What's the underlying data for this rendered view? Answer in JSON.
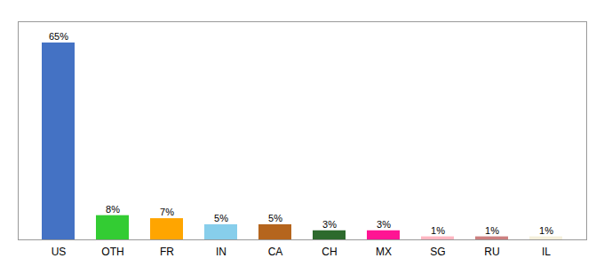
{
  "chart_data": {
    "type": "bar",
    "categories": [
      "US",
      "OTH",
      "FR",
      "IN",
      "CA",
      "CH",
      "MX",
      "SG",
      "RU",
      "IL"
    ],
    "values": [
      65,
      8,
      7,
      5,
      5,
      3,
      3,
      1,
      1,
      1
    ],
    "value_labels": [
      "65%",
      "8%",
      "7%",
      "5%",
      "5%",
      "3%",
      "3%",
      "1%",
      "1%",
      "1%"
    ],
    "colors": [
      "#4472c4",
      "#33cc33",
      "#ffa500",
      "#87ceeb",
      "#b5651d",
      "#2d6a2d",
      "#ff1493",
      "#ffb6c1",
      "#cd8080",
      "#f5f0dc"
    ],
    "ylim": [
      0,
      72
    ],
    "data_labels": true,
    "tick_labels": "x",
    "grid": false
  }
}
